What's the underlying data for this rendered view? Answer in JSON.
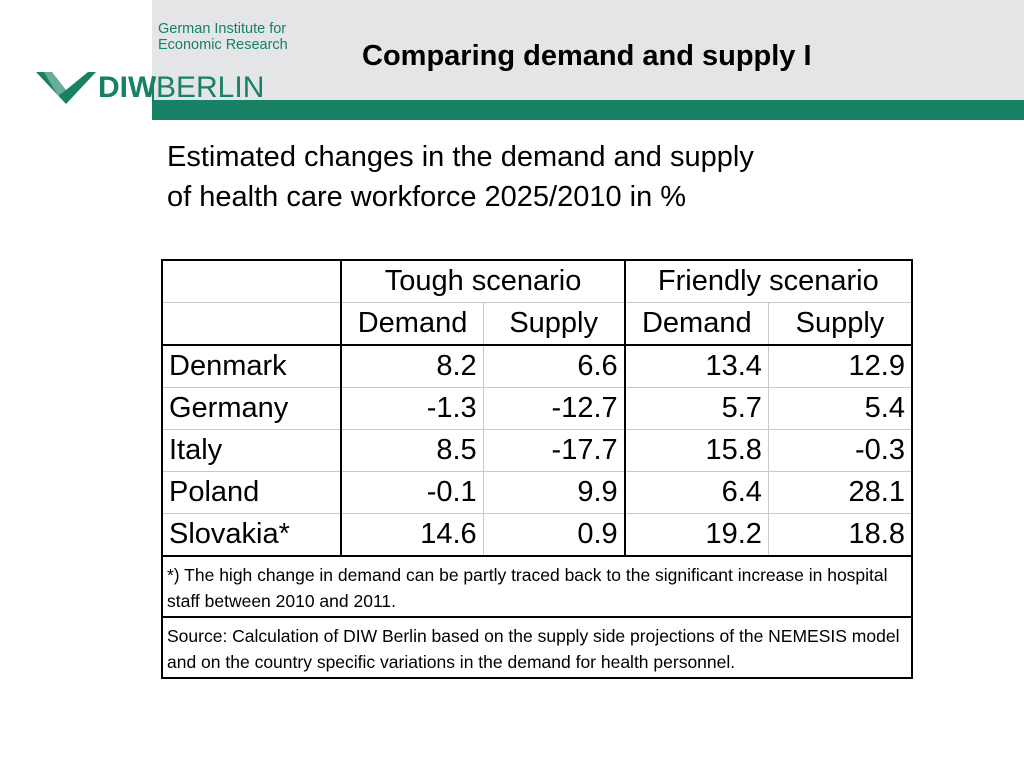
{
  "header": {
    "institute_line1": "German Institute for",
    "institute_line2": "Economic Research",
    "logo_diw": "DIW",
    "logo_berlin": "BERLIN",
    "title": "Comparing demand and supply I",
    "accent_color": "#178065"
  },
  "subtitle": {
    "line1": "Estimated changes in the demand and supply",
    "line2": "of health care workforce 2025/2010 in %"
  },
  "table": {
    "groups": [
      "Tough scenario",
      "Friendly scenario"
    ],
    "subheaders": [
      "Demand",
      "Supply",
      "Demand",
      "Supply"
    ],
    "rows": [
      {
        "country": "Denmark",
        "values": [
          "8.2",
          "6.6",
          "13.4",
          "12.9"
        ]
      },
      {
        "country": "Germany",
        "values": [
          "-1.3",
          "-12.7",
          "5.7",
          "5.4"
        ]
      },
      {
        "country": "Italy",
        "values": [
          "8.5",
          "-17.7",
          "15.8",
          "-0.3"
        ]
      },
      {
        "country": "Poland",
        "values": [
          "-0.1",
          "9.9",
          "6.4",
          "28.1"
        ]
      },
      {
        "country": "Slovakia*",
        "values": [
          "14.6",
          "0.9",
          "19.2",
          "18.8"
        ]
      }
    ],
    "footnote": "*) The high change in demand can be partly traced back to the significant increase in hospital staff between 2010 and 2011.",
    "source": "Source: Calculation of DIW Berlin based on the supply side projections of the NEMESIS model and on the country specific variations in the demand for health personnel."
  }
}
